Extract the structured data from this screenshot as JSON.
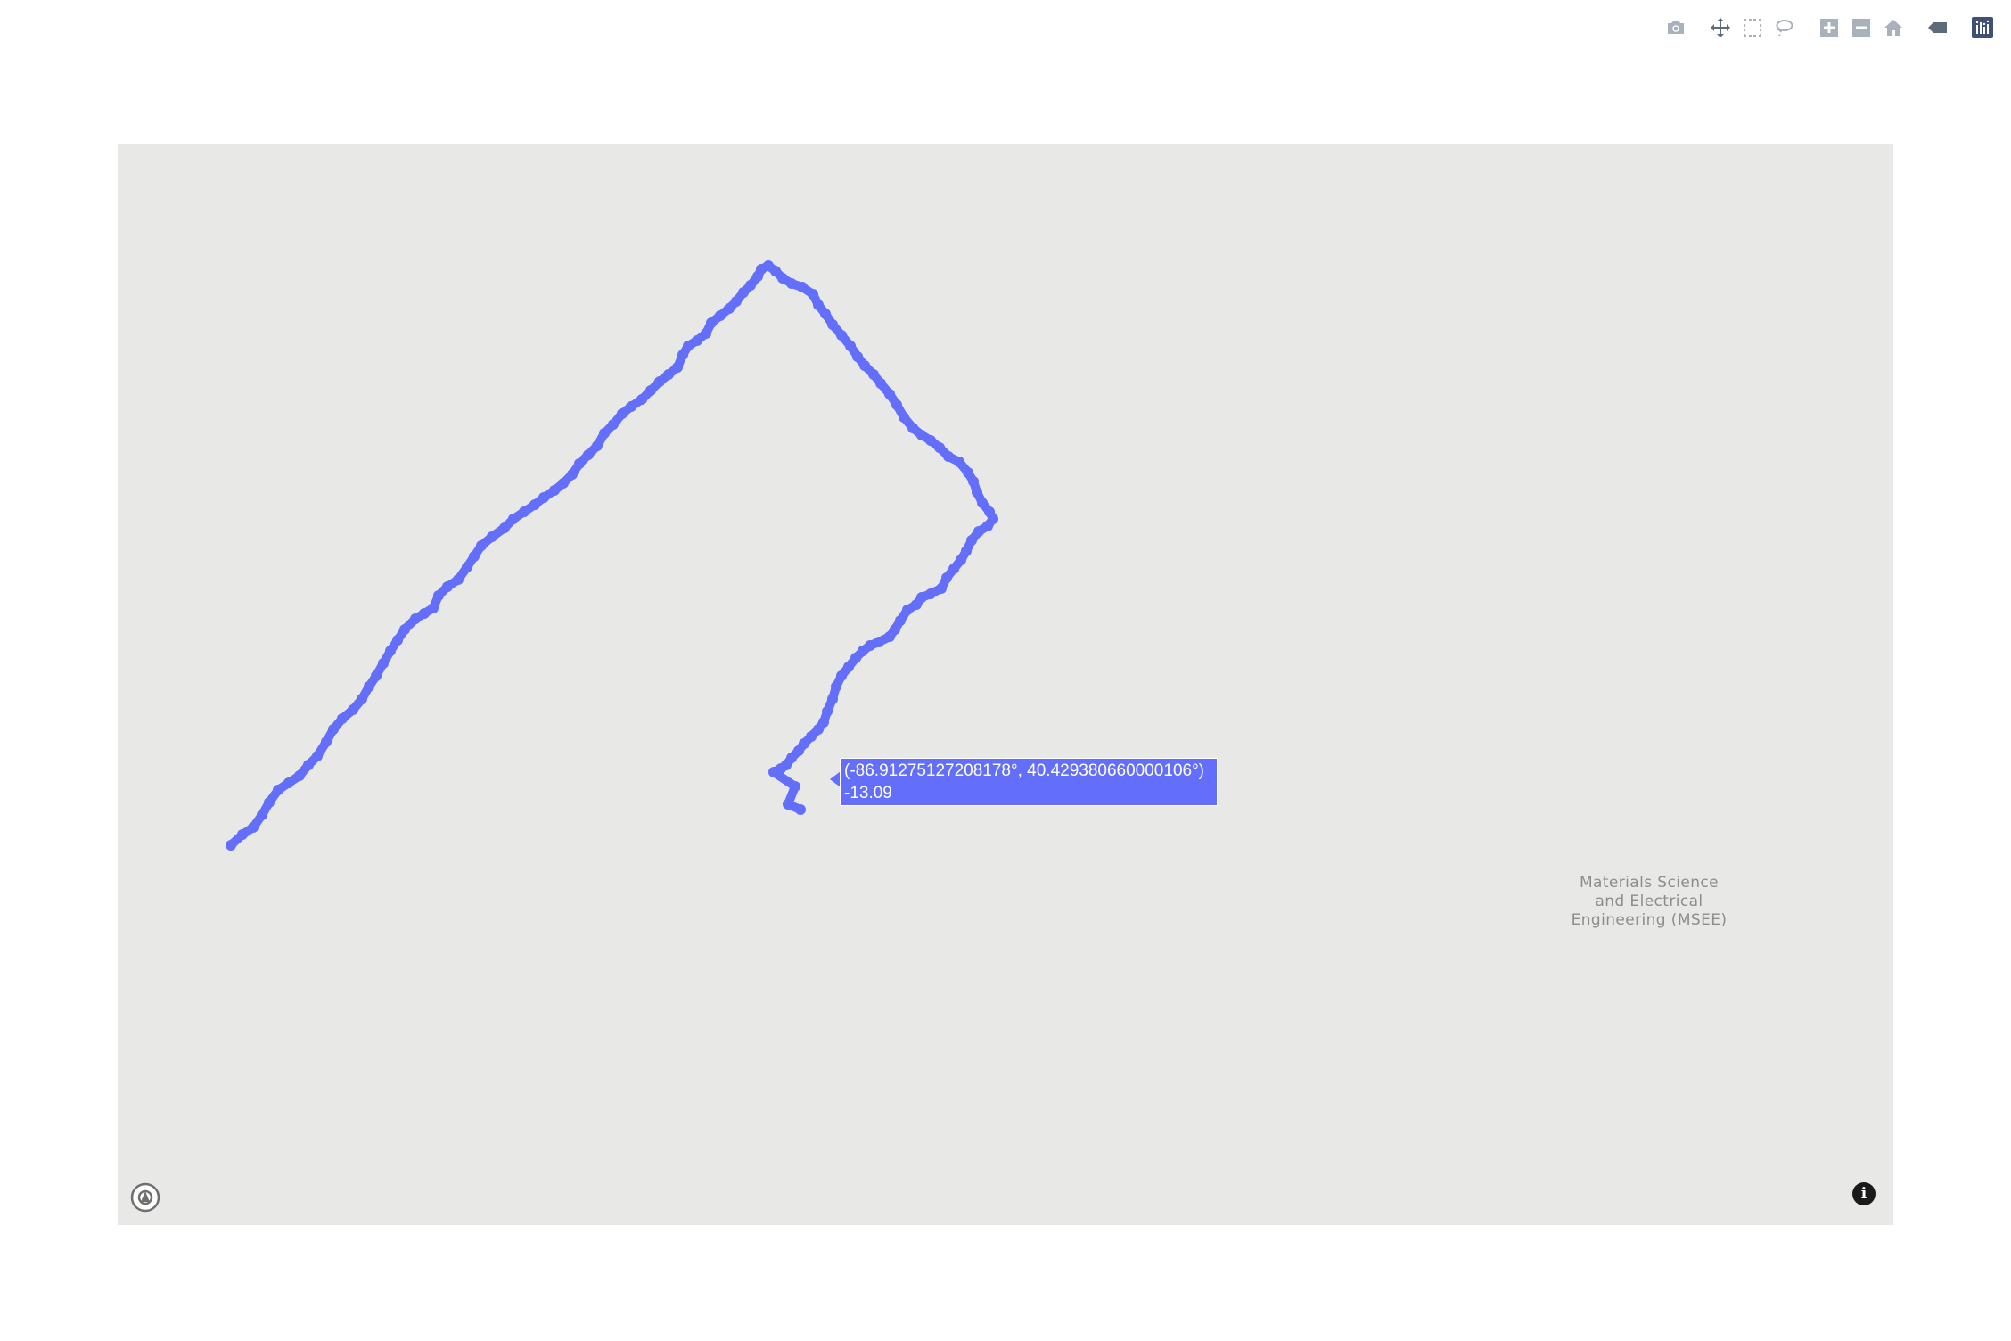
{
  "modebar": {
    "buttons": [
      {
        "name": "download-plot-button",
        "icon": "camera-icon",
        "title": "Download plot as a png"
      },
      {
        "name": "pan-button",
        "icon": "move-icon",
        "title": "Pan"
      },
      {
        "name": "box-select-button",
        "icon": "box-select-icon",
        "title": "Box Select"
      },
      {
        "name": "lasso-select-button",
        "icon": "lasso-icon",
        "title": "Lasso Select"
      },
      {
        "name": "zoom-in-button",
        "icon": "plus-icon",
        "title": "Zoom in"
      },
      {
        "name": "zoom-out-button",
        "icon": "minus-icon",
        "title": "Zoom out"
      },
      {
        "name": "reset-view-button",
        "icon": "home-icon",
        "title": "Reset view"
      },
      {
        "name": "hover-data-button",
        "icon": "tag-icon",
        "title": "Show closest data on hover"
      },
      {
        "name": "plotly-logo-button",
        "icon": "plotly-logo-icon",
        "title": "Produced with Plotly"
      }
    ]
  },
  "map": {
    "background_color": "#e8e8e6",
    "place_label": {
      "line1": "Materials Science",
      "line2": "and Electrical",
      "line3": "Engineering (MSEE)"
    },
    "attribution_icon": "info-icon",
    "attribution_text": "i",
    "logo_icon": "map-logo-icon"
  },
  "trace": {
    "color": "#636efa",
    "mode": "markers+lines"
  },
  "hover": {
    "line1": "(-86.91275127208178°, 40.429380660000106°)",
    "line2": "-13.09"
  }
}
